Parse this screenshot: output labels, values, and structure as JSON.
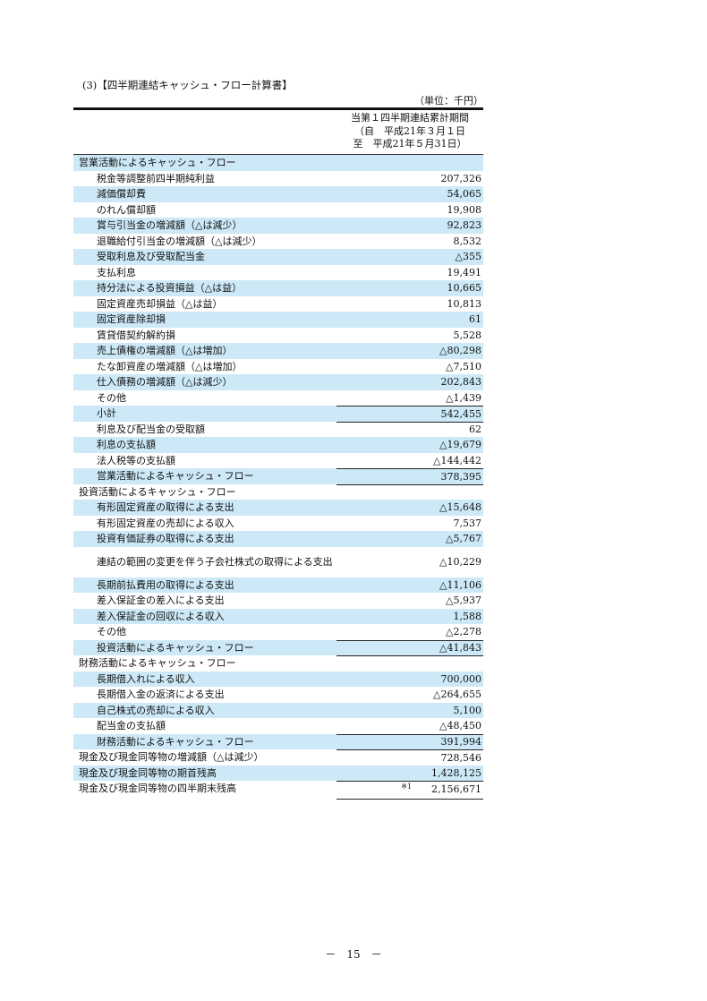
{
  "title": "(3)【四半期連結キャッシュ・フロー計算書】",
  "unit": "（単位：千円）",
  "column_header": [
    "当第１四半期連結累計期間",
    "（自　平成21年３月１日",
    "至　平成21年５月31日）"
  ],
  "highlight_color": "#cde9f7",
  "rows": [
    {
      "label": "営業活動によるキャッシュ・フロー",
      "value": "",
      "indent": false,
      "highlight": true
    },
    {
      "label": "税金等調整前四半期純利益",
      "value": "207,326",
      "indent": true,
      "highlight": false
    },
    {
      "label": "減価償却費",
      "value": "54,065",
      "indent": true,
      "highlight": true
    },
    {
      "label": "のれん償却額",
      "value": "19,908",
      "indent": true,
      "highlight": false
    },
    {
      "label": "賞与引当金の増減額（△は減少）",
      "value": "92,823",
      "indent": true,
      "highlight": true
    },
    {
      "label": "退職給付引当金の増減額（△は減少）",
      "value": "8,532",
      "indent": true,
      "highlight": false
    },
    {
      "label": "受取利息及び受取配当金",
      "value": "△355",
      "indent": true,
      "highlight": true
    },
    {
      "label": "支払利息",
      "value": "19,491",
      "indent": true,
      "highlight": false
    },
    {
      "label": "持分法による投資損益（△は益）",
      "value": "10,665",
      "indent": true,
      "highlight": true
    },
    {
      "label": "固定資産売却損益（△は益）",
      "value": "10,813",
      "indent": true,
      "highlight": false
    },
    {
      "label": "固定資産除却損",
      "value": "61",
      "indent": true,
      "highlight": true
    },
    {
      "label": "賃貸借契約解約損",
      "value": "5,528",
      "indent": true,
      "highlight": false
    },
    {
      "label": "売上債権の増減額（△は増加）",
      "value": "△80,298",
      "indent": true,
      "highlight": true
    },
    {
      "label": "たな卸資産の増減額（△は増加）",
      "value": "△7,510",
      "indent": true,
      "highlight": false
    },
    {
      "label": "仕入債務の増減額（△は減少）",
      "value": "202,843",
      "indent": true,
      "highlight": true
    },
    {
      "label": "その他",
      "value": "△1,439",
      "indent": true,
      "highlight": false
    },
    {
      "label": "小計",
      "value": "542,455",
      "indent": true,
      "highlight": true,
      "rule_above": true
    },
    {
      "label": "利息及び配当金の受取額",
      "value": "62",
      "indent": true,
      "highlight": false,
      "rule_above": true
    },
    {
      "label": "利息の支払額",
      "value": "△19,679",
      "indent": true,
      "highlight": true
    },
    {
      "label": "法人税等の支払額",
      "value": "△144,442",
      "indent": true,
      "highlight": false
    },
    {
      "label": "営業活動によるキャッシュ・フロー",
      "value": "378,395",
      "indent": true,
      "highlight": true,
      "rule_above": true
    },
    {
      "label": "投資活動によるキャッシュ・フロー",
      "value": "",
      "indent": false,
      "highlight": false,
      "rule_above": true
    },
    {
      "label": "有形固定資産の取得による支出",
      "value": "△15,648",
      "indent": true,
      "highlight": true
    },
    {
      "label": "有形固定資産の売却による収入",
      "value": "7,537",
      "indent": true,
      "highlight": false
    },
    {
      "label": "投資有価証券の取得による支出",
      "value": "△5,767",
      "indent": true,
      "highlight": true
    },
    {
      "label": "連結の範囲の変更を伴う子会社株式の取得による支出",
      "value": "△10,229",
      "indent": true,
      "highlight": false,
      "tall": true
    },
    {
      "label": "長期前払費用の取得による支出",
      "value": "△11,106",
      "indent": true,
      "highlight": true
    },
    {
      "label": "差入保証金の差入による支出",
      "value": "△5,937",
      "indent": true,
      "highlight": false
    },
    {
      "label": "差入保証金の回収による収入",
      "value": "1,588",
      "indent": true,
      "highlight": true
    },
    {
      "label": "その他",
      "value": "△2,278",
      "indent": true,
      "highlight": false
    },
    {
      "label": "投資活動によるキャッシュ・フロー",
      "value": "△41,843",
      "indent": true,
      "highlight": true,
      "rule_above": true
    },
    {
      "label": "財務活動によるキャッシュ・フロー",
      "value": "",
      "indent": false,
      "highlight": false,
      "rule_above": true
    },
    {
      "label": "長期借入れによる収入",
      "value": "700,000",
      "indent": true,
      "highlight": true
    },
    {
      "label": "長期借入金の返済による支出",
      "value": "△264,655",
      "indent": true,
      "highlight": false
    },
    {
      "label": "自己株式の売却による収入",
      "value": "5,100",
      "indent": true,
      "highlight": true
    },
    {
      "label": "配当金の支払額",
      "value": "△48,450",
      "indent": true,
      "highlight": false
    },
    {
      "label": "財務活動によるキャッシュ・フロー",
      "value": "391,994",
      "indent": true,
      "highlight": true,
      "rule_above": true
    },
    {
      "label": "現金及び現金同等物の増減額（△は減少）",
      "value": "728,546",
      "indent": false,
      "highlight": false,
      "rule_above": true
    },
    {
      "label": "現金及び現金同等物の期首残高",
      "value": "1,428,125",
      "indent": false,
      "highlight": true
    },
    {
      "label": "現金及び現金同等物の四半期末残高",
      "value": "2,156,671",
      "note": "※1",
      "indent": false,
      "highlight": false,
      "rule_above": true
    }
  ],
  "page_number": "－　15　－"
}
